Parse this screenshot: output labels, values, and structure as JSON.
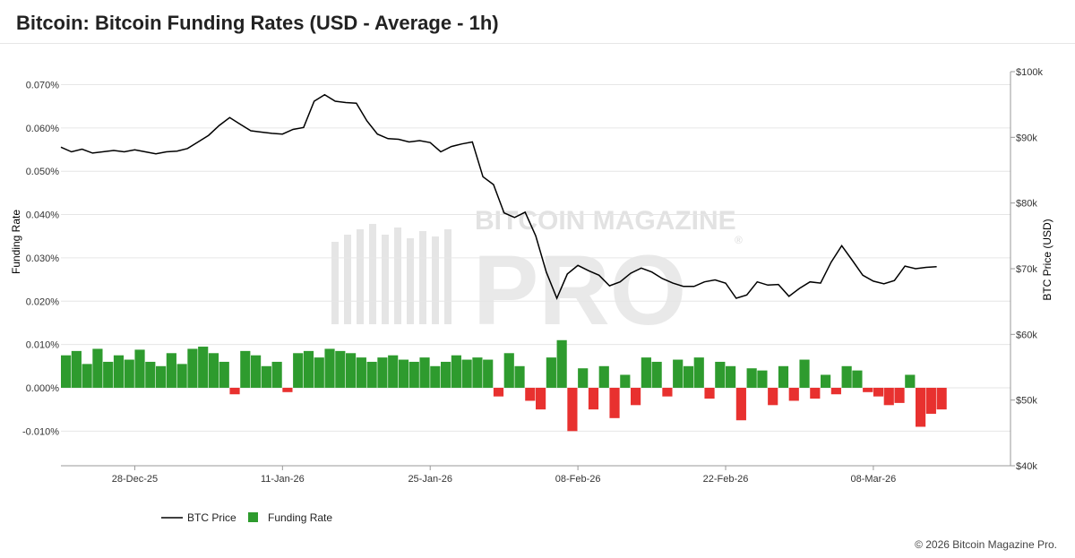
{
  "header": {
    "title": "Bitcoin: Bitcoin Funding Rates (USD - Average - 1h)"
  },
  "footer": {
    "copyright": "© 2026 Bitcoin Magazine Pro."
  },
  "watermark": {
    "line1": "BITCOIN MAGAZINE",
    "line2": "PRO",
    "registered": "®"
  },
  "colors": {
    "price_line": "#000000",
    "funding_positive": "#2e9b2e",
    "funding_negative": "#e8312f",
    "grid": "#e6e6e6",
    "watermark": "#cfcfcf"
  },
  "chart_data": {
    "type": "line",
    "title": "Bitcoin: Bitcoin Funding Rates (USD - Average - 1h)",
    "x_range": [
      "2025-12-21",
      "2026-03-21"
    ],
    "x_ticks": [
      {
        "date": "2025-12-28",
        "label": "28-Dec-25"
      },
      {
        "date": "2026-01-11",
        "label": "11-Jan-26"
      },
      {
        "date": "2026-01-25",
        "label": "25-Jan-26"
      },
      {
        "date": "2026-02-08",
        "label": "08-Feb-26"
      },
      {
        "date": "2026-02-22",
        "label": "22-Feb-26"
      },
      {
        "date": "2026-03-08",
        "label": "08-Mar-26"
      }
    ],
    "y_left": {
      "label": "Funding Rate",
      "unit": "%",
      "range": [
        -0.018,
        0.073
      ],
      "ticks": [
        -0.01,
        0.0,
        0.01,
        0.02,
        0.03,
        0.04,
        0.05,
        0.06,
        0.07
      ],
      "tick_labels": [
        "-0.010%",
        "0.000%",
        "0.010%",
        "0.020%",
        "0.030%",
        "0.040%",
        "0.050%",
        "0.060%",
        "0.070%"
      ]
    },
    "y_right": {
      "label": "BTC Price (USD)",
      "range": [
        40000,
        100000
      ],
      "ticks": [
        40000,
        50000,
        60000,
        70000,
        80000,
        90000,
        100000
      ],
      "tick_labels": [
        "$40k",
        "$50k",
        "$60k",
        "$70k",
        "$80k",
        "$90k",
        "$100k"
      ]
    },
    "grid": "horizontal",
    "legend": {
      "placement": "bottom-left",
      "entries": [
        "BTC Price",
        "Funding Rate"
      ]
    },
    "series": [
      {
        "name": "BTC Price",
        "type": "line",
        "axis": "right",
        "points": [
          [
            "2025-12-21",
            88500
          ],
          [
            "2025-12-22",
            87800
          ],
          [
            "2025-12-23",
            88200
          ],
          [
            "2025-12-24",
            87600
          ],
          [
            "2025-12-26",
            88000
          ],
          [
            "2025-12-27",
            87800
          ],
          [
            "2025-12-28",
            88100
          ],
          [
            "2025-12-29",
            87800
          ],
          [
            "2025-12-30",
            87500
          ],
          [
            "2025-12-31",
            87800
          ],
          [
            "2026-01-01",
            87900
          ],
          [
            "2026-01-02",
            88300
          ],
          [
            "2026-01-03",
            89300
          ],
          [
            "2026-01-04",
            90300
          ],
          [
            "2026-01-05",
            91800
          ],
          [
            "2026-01-06",
            93000
          ],
          [
            "2026-01-07",
            92000
          ],
          [
            "2026-01-08",
            91000
          ],
          [
            "2026-01-09",
            90800
          ],
          [
            "2026-01-10",
            90600
          ],
          [
            "2026-01-11",
            90500
          ],
          [
            "2026-01-12",
            91200
          ],
          [
            "2026-01-13",
            91500
          ],
          [
            "2026-01-14",
            95500
          ],
          [
            "2026-01-15",
            96500
          ],
          [
            "2026-01-16",
            95500
          ],
          [
            "2026-01-17",
            95300
          ],
          [
            "2026-01-18",
            95200
          ],
          [
            "2026-01-19",
            92500
          ],
          [
            "2026-01-20",
            90500
          ],
          [
            "2026-01-21",
            89800
          ],
          [
            "2026-01-22",
            89700
          ],
          [
            "2026-01-23",
            89300
          ],
          [
            "2026-01-24",
            89500
          ],
          [
            "2026-01-25",
            89200
          ],
          [
            "2026-01-26",
            87800
          ],
          [
            "2026-01-27",
            88600
          ],
          [
            "2026-01-28",
            89000
          ],
          [
            "2026-01-29",
            89300
          ],
          [
            "2026-01-30",
            84000
          ],
          [
            "2026-01-31",
            82800
          ],
          [
            "2026-02-01",
            78500
          ],
          [
            "2026-02-02",
            77800
          ],
          [
            "2026-02-03",
            78600
          ],
          [
            "2026-02-04",
            75000
          ],
          [
            "2026-02-05",
            69500
          ],
          [
            "2026-02-06",
            65500
          ],
          [
            "2026-02-07",
            69200
          ],
          [
            "2026-02-08",
            70500
          ],
          [
            "2026-02-09",
            69700
          ],
          [
            "2026-02-10",
            69000
          ],
          [
            "2026-02-11",
            67400
          ],
          [
            "2026-02-12",
            68000
          ],
          [
            "2026-02-13",
            69300
          ],
          [
            "2026-02-14",
            70100
          ],
          [
            "2026-02-15",
            69500
          ],
          [
            "2026-02-16",
            68500
          ],
          [
            "2026-02-17",
            67800
          ],
          [
            "2026-02-18",
            67300
          ],
          [
            "2026-02-19",
            67300
          ],
          [
            "2026-02-20",
            68000
          ],
          [
            "2026-02-21",
            68300
          ],
          [
            "2026-02-22",
            67800
          ],
          [
            "2026-02-23",
            65500
          ],
          [
            "2026-02-24",
            66000
          ],
          [
            "2026-02-25",
            68000
          ],
          [
            "2026-02-26",
            67500
          ],
          [
            "2026-02-27",
            67600
          ],
          [
            "2026-02-28",
            65800
          ],
          [
            "2026-03-01",
            67000
          ],
          [
            "2026-03-02",
            68000
          ],
          [
            "2026-03-03",
            67800
          ],
          [
            "2026-03-04",
            71000
          ],
          [
            "2026-03-05",
            73500
          ],
          [
            "2026-03-06",
            71300
          ],
          [
            "2026-03-07",
            69000
          ],
          [
            "2026-03-08",
            68100
          ],
          [
            "2026-03-09",
            67700
          ],
          [
            "2026-03-10",
            68200
          ],
          [
            "2026-03-11",
            70400
          ],
          [
            "2026-03-12",
            70000
          ],
          [
            "2026-03-13",
            70200
          ],
          [
            "2026-03-14",
            70300
          ]
        ]
      },
      {
        "name": "Funding Rate",
        "type": "bar",
        "axis": "left",
        "unit": "%",
        "points": [
          [
            "2025-12-21",
            0.0075
          ],
          [
            "2025-12-22",
            0.0085
          ],
          [
            "2025-12-23",
            0.0055
          ],
          [
            "2025-12-24",
            0.009
          ],
          [
            "2025-12-25",
            0.006
          ],
          [
            "2025-12-26",
            0.0075
          ],
          [
            "2025-12-27",
            0.0065
          ],
          [
            "2025-12-28",
            0.0088
          ],
          [
            "2025-12-29",
            0.006
          ],
          [
            "2025-12-30",
            0.005
          ],
          [
            "2025-12-31",
            0.008
          ],
          [
            "2026-01-01",
            0.0055
          ],
          [
            "2026-01-02",
            0.009
          ],
          [
            "2026-01-03",
            0.0095
          ],
          [
            "2026-01-04",
            0.008
          ],
          [
            "2026-01-05",
            0.006
          ],
          [
            "2026-01-06",
            -0.0015
          ],
          [
            "2026-01-07",
            0.0085
          ],
          [
            "2026-01-08",
            0.0075
          ],
          [
            "2026-01-09",
            0.005
          ],
          [
            "2026-01-10",
            0.006
          ],
          [
            "2026-01-11",
            -0.001
          ],
          [
            "2026-01-12",
            0.008
          ],
          [
            "2026-01-13",
            0.0085
          ],
          [
            "2026-01-14",
            0.007
          ],
          [
            "2026-01-15",
            0.009
          ],
          [
            "2026-01-16",
            0.0085
          ],
          [
            "2026-01-17",
            0.008
          ],
          [
            "2026-01-18",
            0.007
          ],
          [
            "2026-01-19",
            0.006
          ],
          [
            "2026-01-20",
            0.007
          ],
          [
            "2026-01-21",
            0.0075
          ],
          [
            "2026-01-22",
            0.0065
          ],
          [
            "2026-01-23",
            0.006
          ],
          [
            "2026-01-24",
            0.007
          ],
          [
            "2026-01-25",
            0.005
          ],
          [
            "2026-01-26",
            0.006
          ],
          [
            "2026-01-27",
            0.0075
          ],
          [
            "2026-01-28",
            0.0065
          ],
          [
            "2026-01-29",
            0.007
          ],
          [
            "2026-01-30",
            0.0065
          ],
          [
            "2026-01-31",
            -0.002
          ],
          [
            "2026-02-01",
            0.008
          ],
          [
            "2026-02-02",
            0.005
          ],
          [
            "2026-02-03",
            -0.003
          ],
          [
            "2026-02-04",
            -0.005
          ],
          [
            "2026-02-05",
            0.007
          ],
          [
            "2026-02-06",
            0.011
          ],
          [
            "2026-02-07",
            -0.01
          ],
          [
            "2026-02-08",
            0.0045
          ],
          [
            "2026-02-09",
            -0.005
          ],
          [
            "2026-02-10",
            0.005
          ],
          [
            "2026-02-11",
            -0.007
          ],
          [
            "2026-02-12",
            0.003
          ],
          [
            "2026-02-13",
            -0.004
          ],
          [
            "2026-02-14",
            0.007
          ],
          [
            "2026-02-15",
            0.006
          ],
          [
            "2026-02-16",
            -0.002
          ],
          [
            "2026-02-17",
            0.0065
          ],
          [
            "2026-02-18",
            0.005
          ],
          [
            "2026-02-19",
            0.007
          ],
          [
            "2026-02-20",
            -0.0025
          ],
          [
            "2026-02-21",
            0.006
          ],
          [
            "2026-02-22",
            0.005
          ],
          [
            "2026-02-23",
            -0.0075
          ],
          [
            "2026-02-24",
            0.0045
          ],
          [
            "2026-02-25",
            0.004
          ],
          [
            "2026-02-26",
            -0.004
          ],
          [
            "2026-02-27",
            0.005
          ],
          [
            "2026-02-28",
            -0.003
          ],
          [
            "2026-03-01",
            0.0065
          ],
          [
            "2026-03-02",
            -0.0025
          ],
          [
            "2026-03-03",
            0.003
          ],
          [
            "2026-03-04",
            -0.0015
          ],
          [
            "2026-03-05",
            0.005
          ],
          [
            "2026-03-06",
            0.004
          ],
          [
            "2026-03-07",
            -0.001
          ],
          [
            "2026-03-08",
            -0.002
          ],
          [
            "2026-03-09",
            -0.004
          ],
          [
            "2026-03-10",
            -0.0035
          ],
          [
            "2026-03-11",
            0.003
          ],
          [
            "2026-03-12",
            -0.009
          ],
          [
            "2026-03-13",
            -0.006
          ],
          [
            "2026-03-14",
            -0.005
          ]
        ]
      }
    ]
  }
}
